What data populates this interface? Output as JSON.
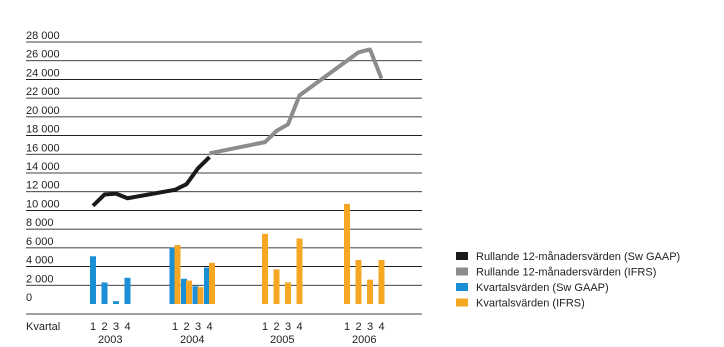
{
  "chart_data": {
    "type": "bar",
    "xlabel": "Kvartal",
    "ylim": [
      0,
      28000
    ],
    "yticks": [
      "0",
      "2 000",
      "4 000",
      "6 000",
      "8 000",
      "10 000",
      "12 000",
      "14 000",
      "16 000",
      "18 000",
      "20 000",
      "22 000",
      "24 000",
      "26 000",
      "28 000"
    ],
    "grid": true,
    "legend_position": "right",
    "years": [
      "2003",
      "2004",
      "2005",
      "2006"
    ],
    "quarter_labels": [
      "1",
      "2",
      "3",
      "4"
    ],
    "colors": {
      "sw_gaap_bars": "#1a8fd6",
      "ifrs_bars": "#f5a623",
      "sw_gaap_line": "#1a1a1a",
      "ifrs_line": "#8c8c8c",
      "grid": "#000000"
    },
    "series": [
      {
        "name": "Rullande 12-månadersvärden (Sw GAAP)",
        "kind": "line",
        "color": "#1a1a1a",
        "points": [
          {
            "year": "2003",
            "quarter": 1,
            "value": 10500
          },
          {
            "year": "2003",
            "quarter": 2,
            "value": 11700
          },
          {
            "year": "2003",
            "quarter": 3,
            "value": 11800
          },
          {
            "year": "2003",
            "quarter": 4,
            "value": 11300
          },
          {
            "year": "2004",
            "quarter": 1,
            "value": 12200
          },
          {
            "year": "2004",
            "quarter": 2,
            "value": 12800
          },
          {
            "year": "2004",
            "quarter": 3,
            "value": 14500
          },
          {
            "year": "2004",
            "quarter": 4,
            "value": 15700
          }
        ]
      },
      {
        "name": "Rullande 12-månadersvärden (IFRS)",
        "kind": "line",
        "color": "#8c8c8c",
        "points": [
          {
            "year": "2004",
            "quarter": 4,
            "value": 16100
          },
          {
            "year": "2005",
            "quarter": 1,
            "value": 17300
          },
          {
            "year": "2005",
            "quarter": 2,
            "value": 18500
          },
          {
            "year": "2005",
            "quarter": 3,
            "value": 19200
          },
          {
            "year": "2005",
            "quarter": 4,
            "value": 22300
          },
          {
            "year": "2006",
            "quarter": 1,
            "value": 26000
          },
          {
            "year": "2006",
            "quarter": 2,
            "value": 26900
          },
          {
            "year": "2006",
            "quarter": 3,
            "value": 27200
          },
          {
            "year": "2006",
            "quarter": 4,
            "value": 24100
          }
        ]
      },
      {
        "name": "Kvartalsvärden (Sw GAAP)",
        "kind": "bar",
        "color": "#1a8fd6",
        "points": [
          {
            "year": "2003",
            "quarter": 1,
            "value": 5100
          },
          {
            "year": "2003",
            "quarter": 2,
            "value": 2300
          },
          {
            "year": "2003",
            "quarter": 3,
            "value": 300
          },
          {
            "year": "2003",
            "quarter": 4,
            "value": 2800
          },
          {
            "year": "2004",
            "quarter": 1,
            "value": 6000
          },
          {
            "year": "2004",
            "quarter": 2,
            "value": 2700
          },
          {
            "year": "2004",
            "quarter": 3,
            "value": 1900
          },
          {
            "year": "2004",
            "quarter": 4,
            "value": 3900
          }
        ]
      },
      {
        "name": "Kvartalsvärden (IFRS)",
        "kind": "bar",
        "color": "#f5a623",
        "points": [
          {
            "year": "2004",
            "quarter": 1,
            "value": 6300
          },
          {
            "year": "2004",
            "quarter": 2,
            "value": 2500
          },
          {
            "year": "2004",
            "quarter": 3,
            "value": 1800
          },
          {
            "year": "2004",
            "quarter": 4,
            "value": 4400
          },
          {
            "year": "2005",
            "quarter": 1,
            "value": 7500
          },
          {
            "year": "2005",
            "quarter": 2,
            "value": 3700
          },
          {
            "year": "2005",
            "quarter": 3,
            "value": 2300
          },
          {
            "year": "2005",
            "quarter": 4,
            "value": 7000
          },
          {
            "year": "2006",
            "quarter": 1,
            "value": 10700
          },
          {
            "year": "2006",
            "quarter": 2,
            "value": 4700
          },
          {
            "year": "2006",
            "quarter": 3,
            "value": 2600
          },
          {
            "year": "2006",
            "quarter": 4,
            "value": 4700
          }
        ]
      }
    ]
  }
}
